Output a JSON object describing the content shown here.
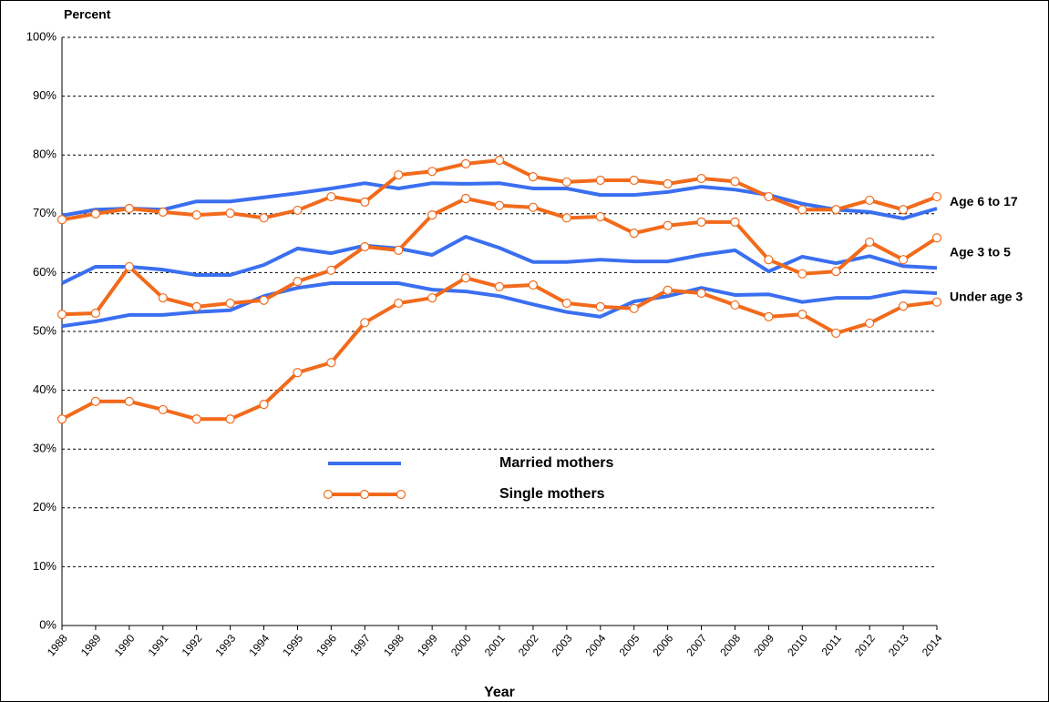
{
  "chart_data": {
    "type": "line",
    "ylabel": "Percent",
    "xlabel": "Year",
    "categories": [
      "1988",
      "1989",
      "1990",
      "1991",
      "1992",
      "1993",
      "1994",
      "1995",
      "1996",
      "1997",
      "1998",
      "1999",
      "2000",
      "2001",
      "2002",
      "2003",
      "2004",
      "2005",
      "2006",
      "2007",
      "2008",
      "2009",
      "2010",
      "2011",
      "2012",
      "2013",
      "2014"
    ],
    "ylim": [
      0,
      100
    ],
    "yticks": [
      {
        "value": 0,
        "label": "0%"
      },
      {
        "value": 10,
        "label": "10%"
      },
      {
        "value": 20,
        "label": "20%"
      },
      {
        "value": 30,
        "label": "30%"
      },
      {
        "value": 40,
        "label": "40%"
      },
      {
        "value": 50,
        "label": "50%"
      },
      {
        "value": 60,
        "label": "60%"
      },
      {
        "value": 70,
        "label": "70%"
      },
      {
        "value": 80,
        "label": "80%"
      },
      {
        "value": 90,
        "label": "90%"
      },
      {
        "value": 100,
        "label": "100%"
      }
    ],
    "grid": true,
    "annotations": [
      "Age 6 to 17",
      "Age 3 to 5",
      "Under age 3"
    ],
    "series": [
      {
        "name": "Married mothers",
        "color": "#3a6ff0",
        "markers": false,
        "lines": [
          [
            69.7,
            70.7,
            70.9,
            70.7,
            72.1,
            72.1,
            72.8,
            73.5,
            74.3,
            75.2,
            74.3,
            75.2,
            75.1,
            75.2,
            74.3,
            74.3,
            73.2,
            73.2,
            73.7,
            74.6,
            74.1,
            73.2,
            71.7,
            70.7,
            70.3,
            69.2,
            70.9
          ],
          [
            58.2,
            61.0,
            61.0,
            60.5,
            59.6,
            59.6,
            61.3,
            64.1,
            63.3,
            64.6,
            64.1,
            63.0,
            66.1,
            64.2,
            61.8,
            61.8,
            62.2,
            61.9,
            61.9,
            63.0,
            63.8,
            60.2,
            62.7,
            61.6,
            62.8,
            61.1,
            60.8
          ],
          [
            50.9,
            51.7,
            52.8,
            52.8,
            53.3,
            53.6,
            56.0,
            57.4,
            58.2,
            58.2,
            58.2,
            57.1,
            56.8,
            56.0,
            54.6,
            53.3,
            52.5,
            55.1,
            56.0,
            57.4,
            56.2,
            56.3,
            55.0,
            55.7,
            55.7,
            56.8,
            56.5
          ]
        ]
      },
      {
        "name": "Single mothers",
        "color": "#f26a1b",
        "markers": true,
        "lines": [
          [
            69.0,
            70.0,
            70.9,
            70.3,
            69.8,
            70.1,
            69.3,
            70.6,
            72.9,
            72.0,
            76.6,
            77.2,
            78.5,
            79.1,
            76.3,
            75.4,
            75.7,
            75.7,
            75.1,
            76.0,
            75.5,
            72.9,
            70.7,
            70.7,
            72.3,
            70.7,
            72.9
          ],
          [
            52.9,
            53.1,
            61.0,
            55.7,
            54.2,
            54.8,
            55.3,
            58.5,
            60.4,
            64.4,
            63.8,
            69.8,
            72.6,
            71.4,
            71.1,
            69.3,
            69.5,
            66.7,
            68.0,
            68.6,
            68.6,
            62.2,
            59.8,
            60.2,
            65.2,
            62.2,
            65.9
          ],
          [
            35.1,
            38.1,
            38.1,
            36.7,
            35.1,
            35.1,
            37.6,
            43.0,
            44.7,
            51.5,
            54.8,
            55.7,
            59.1,
            57.6,
            57.9,
            54.8,
            54.2,
            53.9,
            57.0,
            56.5,
            54.5,
            52.5,
            52.9,
            49.7,
            51.4,
            54.3,
            55.0
          ]
        ]
      }
    ]
  }
}
